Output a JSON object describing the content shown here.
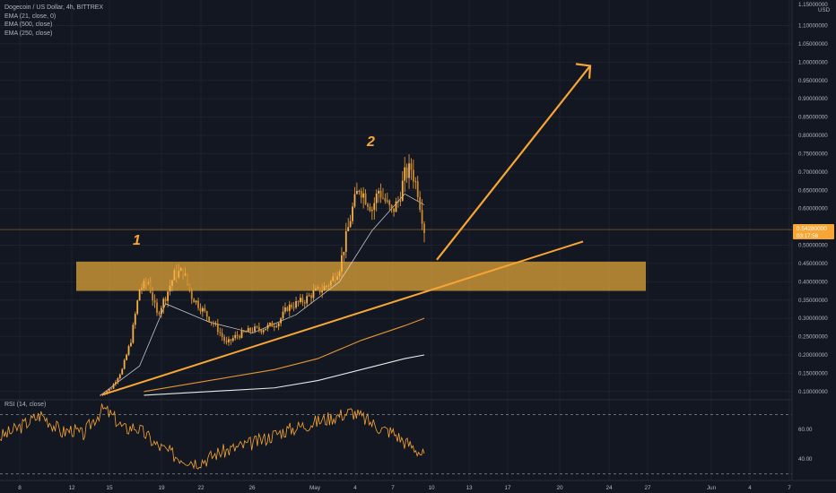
{
  "window": {
    "symbol_line": "Dogecoin / US Dollar, 4h, BITTREX"
  },
  "indicators": [
    {
      "label": "EMA (21, close, 0)",
      "color": "#e0e0e0"
    },
    {
      "label": "EMA (500, close)",
      "color": "#f7a535"
    },
    {
      "label": "EMA (250, close)",
      "color": "#ffffff"
    }
  ],
  "rsi": {
    "label": "RSI (14, close)",
    "levels": [
      "60.00",
      "40.00"
    ],
    "color": "#f7a535"
  },
  "annotations": {
    "wave1": "1",
    "wave2": "2"
  },
  "current_price": {
    "value": "0.54280000",
    "countdown": "03:17:56",
    "color": "#f7a535"
  },
  "price_axis": {
    "unit": "USD",
    "top_label": "1.15000000",
    "labels": [
      "1.10000000",
      "1.05000000",
      "1.00000000",
      "0.95000000",
      "0.90000000",
      "0.85000000",
      "0.80000000",
      "0.75000000",
      "0.70000000",
      "0.65000000",
      "0.60000000",
      "0.50000000",
      "0.45000000",
      "0.40000000",
      "0.35000000",
      "0.30000000",
      "0.25000000",
      "0.20000000",
      "0.15000000",
      "0.10000000"
    ]
  },
  "time_axis": {
    "labels": [
      "8",
      "12",
      "15",
      "19",
      "22",
      "26",
      "May",
      "4",
      "7",
      "10",
      "13",
      "17",
      "20",
      "24",
      "27",
      "Jun",
      "4",
      "7"
    ]
  },
  "colors": {
    "accent": "#f7a535",
    "zone": "#e8a93a",
    "bull": "#f2a33a",
    "bear": "#f2a33a",
    "background": "#131722"
  },
  "chart_data": {
    "type": "candlestick",
    "title": "Dogecoin / US Dollar, 4h, BITTREX",
    "ylim": [
      0.08,
      1.16
    ],
    "x_ticks": [
      "8",
      "12",
      "15",
      "19",
      "22",
      "26",
      "May",
      "4",
      "7",
      "10",
      "13",
      "17",
      "20",
      "24",
      "27",
      "Jun",
      "4",
      "7"
    ],
    "current_price": 0.5428,
    "support_zone": [
      0.375,
      0.455
    ],
    "approx_close_path": [
      [
        0,
        0.09
      ],
      [
        5,
        0.11
      ],
      [
        10,
        0.16
      ],
      [
        14,
        0.24
      ],
      [
        18,
        0.38
      ],
      [
        22,
        0.4
      ],
      [
        26,
        0.31
      ],
      [
        30,
        0.36
      ],
      [
        34,
        0.42
      ],
      [
        38,
        0.43
      ],
      [
        42,
        0.36
      ],
      [
        46,
        0.33
      ],
      [
        50,
        0.3
      ],
      [
        54,
        0.27
      ],
      [
        58,
        0.23
      ],
      [
        62,
        0.25
      ],
      [
        66,
        0.26
      ],
      [
        70,
        0.27
      ],
      [
        74,
        0.27
      ],
      [
        78,
        0.28
      ],
      [
        82,
        0.29
      ],
      [
        86,
        0.33
      ],
      [
        90,
        0.34
      ],
      [
        94,
        0.35
      ],
      [
        98,
        0.37
      ],
      [
        102,
        0.38
      ],
      [
        106,
        0.4
      ],
      [
        110,
        0.44
      ],
      [
        113,
        0.52
      ],
      [
        116,
        0.6
      ],
      [
        119,
        0.66
      ],
      [
        122,
        0.63
      ],
      [
        125,
        0.6
      ],
      [
        128,
        0.65
      ],
      [
        131,
        0.62
      ],
      [
        134,
        0.59
      ],
      [
        137,
        0.62
      ],
      [
        140,
        0.69
      ],
      [
        143,
        0.71
      ],
      [
        146,
        0.65
      ],
      [
        149,
        0.5428
      ]
    ],
    "series": [
      {
        "name": "EMA (21, close, 0)",
        "values": [
          [
            0,
            0.09
          ],
          [
            18,
            0.17
          ],
          [
            30,
            0.34
          ],
          [
            50,
            0.29
          ],
          [
            70,
            0.26
          ],
          [
            90,
            0.31
          ],
          [
            110,
            0.4
          ],
          [
            125,
            0.54
          ],
          [
            140,
            0.64
          ],
          [
            149,
            0.61
          ]
        ]
      },
      {
        "name": "EMA (500, close)",
        "values": [
          [
            20,
            0.1
          ],
          [
            50,
            0.13
          ],
          [
            80,
            0.16
          ],
          [
            100,
            0.19
          ],
          [
            120,
            0.24
          ],
          [
            140,
            0.28
          ],
          [
            149,
            0.3
          ]
        ]
      },
      {
        "name": "EMA (250, close)",
        "values": [
          [
            20,
            0.09
          ],
          [
            50,
            0.1
          ],
          [
            80,
            0.11
          ],
          [
            100,
            0.13
          ],
          [
            120,
            0.16
          ],
          [
            140,
            0.19
          ],
          [
            149,
            0.2
          ]
        ]
      }
    ],
    "rsi_values": [
      55,
      58,
      62,
      66,
      70,
      64,
      58,
      60,
      56,
      66,
      74,
      68,
      60,
      62,
      57,
      50,
      46,
      42,
      40,
      38,
      40,
      44,
      46,
      48,
      50,
      52,
      55,
      58,
      60,
      62,
      64,
      66,
      68,
      70,
      72,
      68,
      64,
      60,
      58,
      52,
      48,
      42
    ]
  }
}
